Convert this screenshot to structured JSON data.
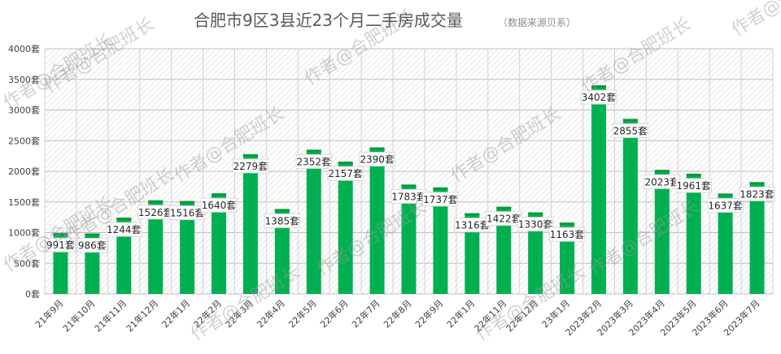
{
  "chart_data": {
    "type": "bar",
    "title": "合肥市9区3县近23个月二手房成交量",
    "subtitle": "（数据来源贝系）",
    "xlabel": "",
    "ylabel": "",
    "ylim": [
      0,
      4000
    ],
    "yticks": [
      "0套",
      "500套",
      "1000套",
      "1500套",
      "2000套",
      "2500套",
      "3000套",
      "3500套",
      "4000套"
    ],
    "ytick_values": [
      0,
      500,
      1000,
      1500,
      2000,
      2500,
      3000,
      3500,
      4000
    ],
    "unit": "套",
    "categories": [
      "21年9月",
      "21年10月",
      "21年11月",
      "21年12月",
      "22年1月",
      "22年2月",
      "22年3月",
      "22年4月",
      "22年5月",
      "22年6月",
      "22年7月",
      "22年8月",
      "22年9月",
      "22年1月",
      "22年11月",
      "22年12月",
      "23年1月",
      "2023年2月",
      "2023年3月",
      "2023年4月",
      "2023年5月",
      "2023年6月",
      "2023年7月"
    ],
    "values": [
      991,
      986,
      1244,
      1526,
      1516,
      1640,
      2279,
      1385,
      2352,
      2157,
      2390,
      1783,
      1737,
      1316,
      1422,
      1330,
      1163,
      3402,
      2855,
      2023,
      1961,
      1637,
      1823
    ],
    "data_labels": [
      "991套",
      "986套",
      "1244套",
      "1526套",
      "1516套",
      "1640套",
      "2279套",
      "1385套",
      "2352套",
      "2157套",
      "2390套",
      "1783套",
      "1737套",
      "1316套",
      "1422套",
      "1330套",
      "1163套",
      "3402套",
      "2855套",
      "2023套",
      "1961套",
      "1637套",
      "1823套"
    ],
    "bar_color": "#00b050",
    "bar_top_color": "#0a9a3c",
    "grid": true,
    "legend": "none"
  },
  "watermark": {
    "text": "作者@合肥班长"
  }
}
